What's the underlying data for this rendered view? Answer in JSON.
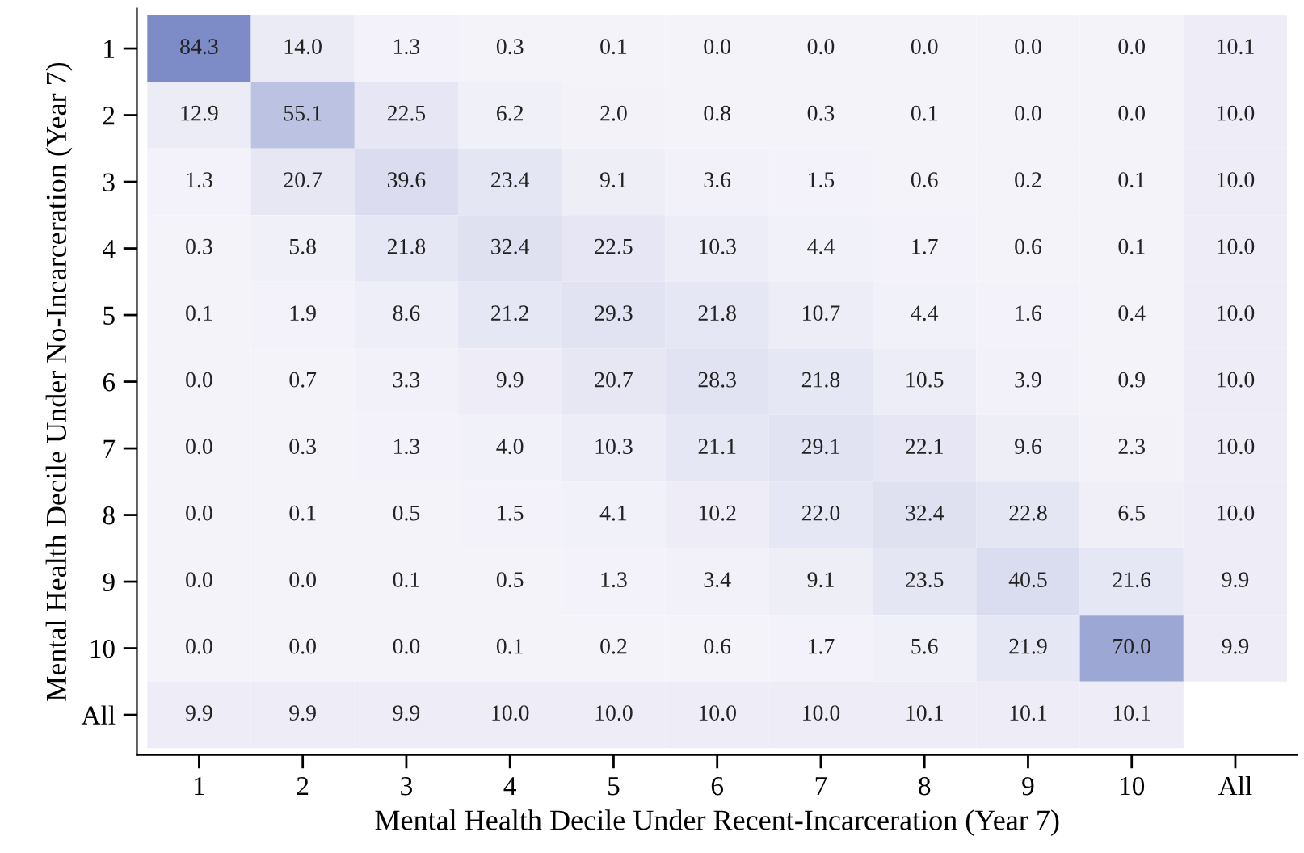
{
  "chart_data": {
    "type": "heatmap",
    "xlabel": "Mental Health Decile Under Recent-Incarceration (Year 7)",
    "ylabel": "Mental Health Decile Under No-Incarceration (Year 7)",
    "categories": [
      "1",
      "2",
      "3",
      "4",
      "5",
      "6",
      "7",
      "8",
      "9",
      "10",
      "All"
    ],
    "y_categories": [
      "1",
      "2",
      "3",
      "4",
      "5",
      "6",
      "7",
      "8",
      "9",
      "10",
      "All"
    ],
    "cells": [
      [
        84.3,
        14.0,
        1.3,
        0.3,
        0.1,
        0.0,
        0.0,
        0.0,
        0.0,
        0.0,
        10.1
      ],
      [
        12.9,
        55.1,
        22.5,
        6.2,
        2.0,
        0.8,
        0.3,
        0.1,
        0.0,
        0.0,
        10.0
      ],
      [
        1.3,
        20.7,
        39.6,
        23.4,
        9.1,
        3.6,
        1.5,
        0.6,
        0.2,
        0.1,
        10.0
      ],
      [
        0.3,
        5.8,
        21.8,
        32.4,
        22.5,
        10.3,
        4.4,
        1.7,
        0.6,
        0.1,
        10.0
      ],
      [
        0.1,
        1.9,
        8.6,
        21.2,
        29.3,
        21.8,
        10.7,
        4.4,
        1.6,
        0.4,
        10.0
      ],
      [
        0.0,
        0.7,
        3.3,
        9.9,
        20.7,
        28.3,
        21.8,
        10.5,
        3.9,
        0.9,
        10.0
      ],
      [
        0.0,
        0.3,
        1.3,
        4.0,
        10.3,
        21.1,
        29.1,
        22.1,
        9.6,
        2.3,
        10.0
      ],
      [
        0.0,
        0.1,
        0.5,
        1.5,
        4.1,
        10.2,
        22.0,
        32.4,
        22.8,
        6.5,
        10.0
      ],
      [
        0.0,
        0.0,
        0.1,
        0.5,
        1.3,
        3.4,
        9.1,
        23.5,
        40.5,
        21.6,
        9.9
      ],
      [
        0.0,
        0.0,
        0.0,
        0.1,
        0.2,
        0.6,
        1.7,
        5.6,
        21.9,
        70.0,
        9.9
      ],
      [
        9.9,
        9.9,
        9.9,
        10.0,
        10.0,
        10.0,
        10.0,
        10.1,
        10.1,
        10.1,
        null
      ]
    ],
    "cell_labels": [
      [
        "84.3",
        "14.0",
        "1.3",
        "0.3",
        "0.1",
        "0.0",
        "0.0",
        "0.0",
        "0.0",
        "0.0",
        "10.1"
      ],
      [
        "12.9",
        "55.1",
        "22.5",
        "6.2",
        "2.0",
        "0.8",
        "0.3",
        "0.1",
        "0.0",
        "0.0",
        "10.0"
      ],
      [
        "1.3",
        "20.7",
        "39.6",
        "23.4",
        "9.1",
        "3.6",
        "1.5",
        "0.6",
        "0.2",
        "0.1",
        "10.0"
      ],
      [
        "0.3",
        "5.8",
        "21.8",
        "32.4",
        "22.5",
        "10.3",
        "4.4",
        "1.7",
        "0.6",
        "0.1",
        "10.0"
      ],
      [
        "0.1",
        "1.9",
        "8.6",
        "21.2",
        "29.3",
        "21.8",
        "10.7",
        "4.4",
        "1.6",
        "0.4",
        "10.0"
      ],
      [
        "0.0",
        "0.7",
        "3.3",
        "9.9",
        "20.7",
        "28.3",
        "21.8",
        "10.5",
        "3.9",
        "0.9",
        "10.0"
      ],
      [
        "0.0",
        "0.3",
        "1.3",
        "4.0",
        "10.3",
        "21.1",
        "29.1",
        "22.1",
        "9.6",
        "2.3",
        "10.0"
      ],
      [
        "0.0",
        "0.1",
        "0.5",
        "1.5",
        "4.1",
        "10.2",
        "22.0",
        "32.4",
        "22.8",
        "6.5",
        "10.0"
      ],
      [
        "0.0",
        "0.0",
        "0.1",
        "0.5",
        "1.3",
        "3.4",
        "9.1",
        "23.5",
        "40.5",
        "21.6",
        "9.9"
      ],
      [
        "0.0",
        "0.0",
        "0.0",
        "0.1",
        "0.2",
        "0.6",
        "1.7",
        "5.6",
        "21.9",
        "70.0",
        "9.9"
      ],
      [
        "9.9",
        "9.9",
        "9.9",
        "10.0",
        "10.0",
        "10.0",
        "10.0",
        "10.1",
        "10.1",
        "10.1",
        null
      ]
    ]
  }
}
